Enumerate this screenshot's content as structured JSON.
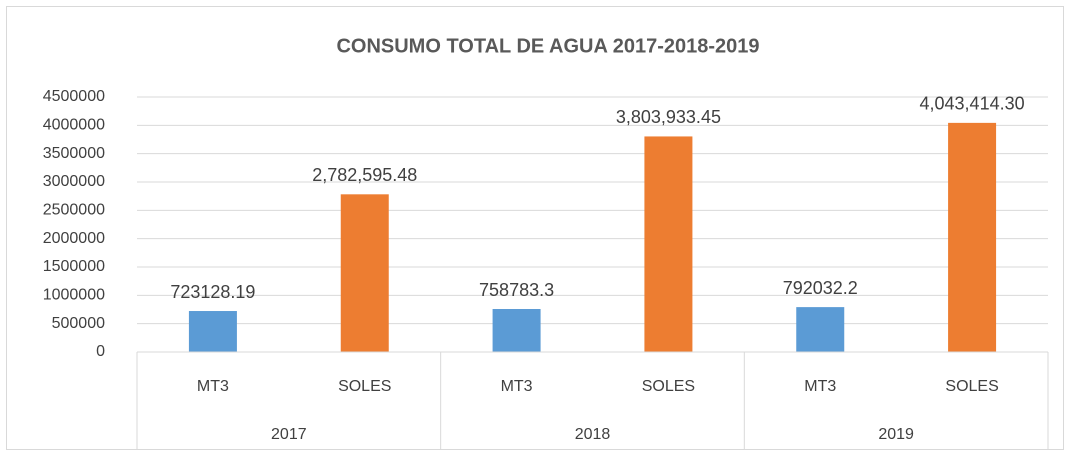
{
  "chart_data": {
    "type": "bar",
    "title": "CONSUMO TOTAL DE AGUA  2017-2018-2019",
    "categories": [
      "MT3",
      "SOLES",
      "MT3",
      "SOLES",
      "MT3",
      "SOLES"
    ],
    "groups": [
      "2017",
      "2018",
      "2019"
    ],
    "values": [
      723128.19,
      2782595.48,
      758783.3,
      3803933.45,
      792032.2,
      4043414.3
    ],
    "value_labels": [
      "723128.19",
      "2,782,595.48",
      "758783.3",
      "3,803,933.45",
      "792032.2",
      "4,043,414.30"
    ],
    "colors": [
      "#5b9bd5",
      "#ed7d31",
      "#5b9bd5",
      "#ed7d31",
      "#5b9bd5",
      "#ed7d31"
    ],
    "ylim": [
      0,
      4500000
    ],
    "yticks": [
      0,
      500000,
      1000000,
      1500000,
      2000000,
      2500000,
      3000000,
      3500000,
      4000000,
      4500000
    ],
    "grid": true
  }
}
